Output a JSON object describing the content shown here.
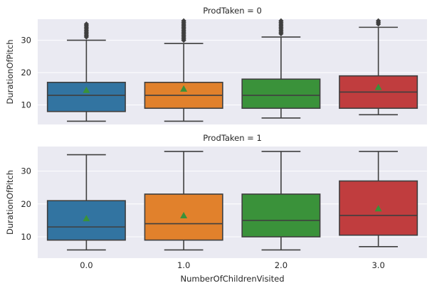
{
  "chart_data": {
    "type": "box",
    "xlabel": "NumberOfChildrenVisited",
    "ylabel": "DurationOfPitch",
    "categories": [
      "0.0",
      "1.0",
      "2.0",
      "3.0"
    ],
    "colors": [
      "#3274a1",
      "#e1812c",
      "#3a923a",
      "#c03d3e"
    ],
    "mean_marker_color": "#3a923a",
    "grid": true,
    "background": "#eaeaf2",
    "panels": [
      {
        "title": "ProdTaken = 0",
        "ylim": [
          4,
          36.5
        ],
        "yticks": [
          10,
          20,
          30
        ],
        "boxes": [
          {
            "category": "0.0",
            "whisker_low": 5,
            "q1": 8,
            "median": 13,
            "q3": 17,
            "whisker_high": 30,
            "mean": 14.6,
            "outliers": [
              31,
              31.5,
              32,
              32.5,
              33,
              33.5,
              34,
              34.5,
              35
            ]
          },
          {
            "category": "1.0",
            "whisker_low": 5,
            "q1": 9,
            "median": 13,
            "q3": 17,
            "whisker_high": 29,
            "mean": 15.0,
            "outliers": [
              30,
              30.5,
              31,
              31.5,
              32,
              32.5,
              33,
              33.5,
              34,
              34.5,
              35,
              35.5,
              36
            ]
          },
          {
            "category": "2.0",
            "whisker_low": 6,
            "q1": 9,
            "median": 13,
            "q3": 18,
            "whisker_high": 31,
            "mean": 15.2,
            "outliers": [
              32,
              32.5,
              33,
              33.5,
              34,
              34.5,
              35,
              35.5,
              36
            ]
          },
          {
            "category": "3.0",
            "whisker_low": 7,
            "q1": 9,
            "median": 14,
            "q3": 19,
            "whisker_high": 34,
            "mean": 15.5,
            "outliers": [
              35,
              35.5,
              36
            ]
          }
        ]
      },
      {
        "title": "ProdTaken = 1",
        "ylim": [
          3.5,
          37.5
        ],
        "yticks": [
          10,
          20,
          30
        ],
        "boxes": [
          {
            "category": "0.0",
            "whisker_low": 6,
            "q1": 9,
            "median": 13,
            "q3": 21,
            "whisker_high": 35,
            "mean": 15.6,
            "outliers": []
          },
          {
            "category": "1.0",
            "whisker_low": 6,
            "q1": 9,
            "median": 14,
            "q3": 23,
            "whisker_high": 36,
            "mean": 16.5,
            "outliers": []
          },
          {
            "category": "2.0",
            "whisker_low": 6,
            "q1": 10,
            "median": 15,
            "q3": 23,
            "whisker_high": 36,
            "mean": 16.8,
            "outliers": []
          },
          {
            "category": "3.0",
            "whisker_low": 7,
            "q1": 10.5,
            "median": 16.5,
            "q3": 27,
            "whisker_high": 36,
            "mean": 18.6,
            "outliers": []
          }
        ]
      }
    ]
  }
}
